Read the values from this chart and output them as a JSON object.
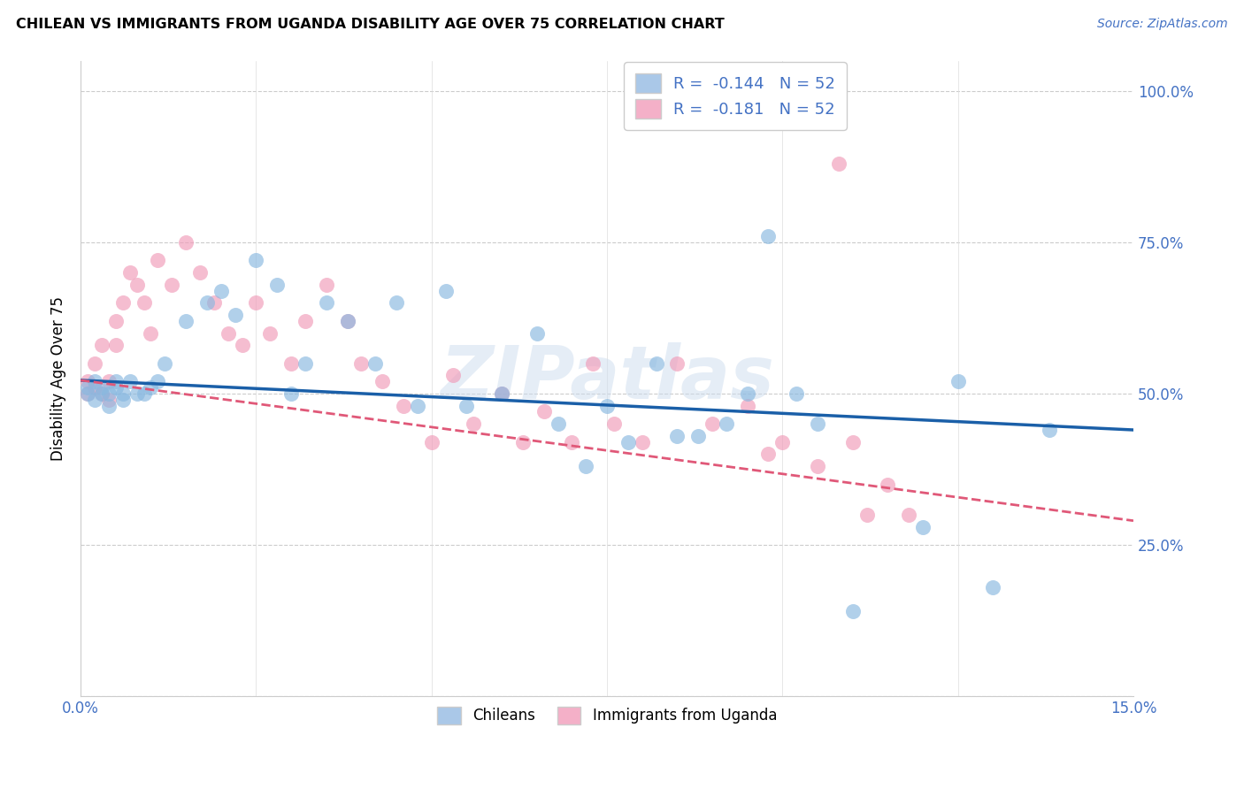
{
  "title": "CHILEAN VS IMMIGRANTS FROM UGANDA DISABILITY AGE OVER 75 CORRELATION CHART",
  "source": "Source: ZipAtlas.com",
  "ylabel_label": "Disability Age Over 75",
  "xlim": [
    0.0,
    0.15
  ],
  "ylim": [
    0.0,
    1.05
  ],
  "yticks": [
    0.0,
    0.25,
    0.5,
    0.75,
    1.0
  ],
  "ytick_labels": [
    "",
    "25.0%",
    "50.0%",
    "75.0%",
    "100.0%"
  ],
  "xticks": [
    0.0,
    0.025,
    0.05,
    0.075,
    0.1,
    0.125,
    0.15
  ],
  "xtick_labels": [
    "0.0%",
    "",
    "",
    "",
    "",
    "",
    "15.0%"
  ],
  "legend_label1": "R =  -0.144   N = 52",
  "legend_label2": "R =  -0.181   N = 52",
  "legend_color1": "#aac8e8",
  "legend_color2": "#f4b0c8",
  "bottom_legend1": "Chileans",
  "bottom_legend2": "Immigrants from Uganda",
  "scatter_color1": "#88b8e0",
  "scatter_color2": "#f09ab8",
  "line_color1": "#1a5fa8",
  "line_color2": "#e05878",
  "watermark": "ZIPatlas",
  "axis_label_color": "#4472c4",
  "chileans_x": [
    0.001,
    0.001,
    0.002,
    0.002,
    0.003,
    0.003,
    0.004,
    0.004,
    0.005,
    0.005,
    0.006,
    0.006,
    0.007,
    0.008,
    0.009,
    0.01,
    0.011,
    0.012,
    0.015,
    0.018,
    0.02,
    0.022,
    0.025,
    0.028,
    0.03,
    0.032,
    0.035,
    0.038,
    0.042,
    0.045,
    0.048,
    0.052,
    0.055,
    0.06,
    0.065,
    0.068,
    0.072,
    0.075,
    0.078,
    0.082,
    0.085,
    0.088,
    0.092,
    0.095,
    0.098,
    0.102,
    0.105,
    0.11,
    0.12,
    0.125,
    0.13,
    0.138
  ],
  "chileans_y": [
    0.5,
    0.51,
    0.49,
    0.52,
    0.5,
    0.51,
    0.5,
    0.48,
    0.51,
    0.52,
    0.49,
    0.5,
    0.52,
    0.5,
    0.5,
    0.51,
    0.52,
    0.55,
    0.62,
    0.65,
    0.67,
    0.63,
    0.72,
    0.68,
    0.5,
    0.55,
    0.65,
    0.62,
    0.55,
    0.65,
    0.48,
    0.67,
    0.48,
    0.5,
    0.6,
    0.45,
    0.38,
    0.48,
    0.42,
    0.55,
    0.43,
    0.43,
    0.45,
    0.5,
    0.76,
    0.5,
    0.45,
    0.14,
    0.28,
    0.52,
    0.18,
    0.44
  ],
  "uganda_x": [
    0.001,
    0.001,
    0.002,
    0.002,
    0.003,
    0.003,
    0.004,
    0.004,
    0.005,
    0.005,
    0.006,
    0.007,
    0.008,
    0.009,
    0.01,
    0.011,
    0.013,
    0.015,
    0.017,
    0.019,
    0.021,
    0.023,
    0.025,
    0.027,
    0.03,
    0.032,
    0.035,
    0.038,
    0.04,
    0.043,
    0.046,
    0.05,
    0.053,
    0.056,
    0.06,
    0.063,
    0.066,
    0.07,
    0.073,
    0.076,
    0.08,
    0.085,
    0.09,
    0.095,
    0.098,
    0.1,
    0.105,
    0.108,
    0.11,
    0.112,
    0.115,
    0.118
  ],
  "uganda_y": [
    0.5,
    0.52,
    0.51,
    0.55,
    0.5,
    0.58,
    0.49,
    0.52,
    0.62,
    0.58,
    0.65,
    0.7,
    0.68,
    0.65,
    0.6,
    0.72,
    0.68,
    0.75,
    0.7,
    0.65,
    0.6,
    0.58,
    0.65,
    0.6,
    0.55,
    0.62,
    0.68,
    0.62,
    0.55,
    0.52,
    0.48,
    0.42,
    0.53,
    0.45,
    0.5,
    0.42,
    0.47,
    0.42,
    0.55,
    0.45,
    0.42,
    0.55,
    0.45,
    0.48,
    0.4,
    0.42,
    0.38,
    0.88,
    0.42,
    0.3,
    0.35,
    0.3
  ]
}
